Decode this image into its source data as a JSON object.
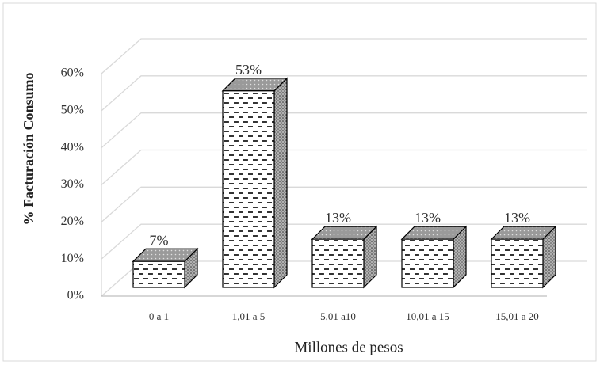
{
  "chart_data": {
    "type": "bar3d",
    "categories": [
      "0 a 1",
      "1,01 a 5",
      "5,01 a10",
      "10,01 a 15",
      "15,01 a 20"
    ],
    "values": [
      7,
      53,
      13,
      13,
      13
    ],
    "value_labels": [
      "7%",
      "53%",
      "13%",
      "13%",
      "13%"
    ],
    "ylim": [
      0,
      60
    ],
    "yticks": [
      {
        "value": 0,
        "label": "0%"
      },
      {
        "value": 10,
        "label": "10%"
      },
      {
        "value": 20,
        "label": "20%"
      },
      {
        "value": 30,
        "label": "30%"
      },
      {
        "value": 40,
        "label": "40%"
      },
      {
        "value": 50,
        "label": "50%"
      },
      {
        "value": 60,
        "label": "60%"
      }
    ],
    "y_label": "% Facturación Consumo",
    "x_label": "Millones de pesos",
    "grid": true
  }
}
